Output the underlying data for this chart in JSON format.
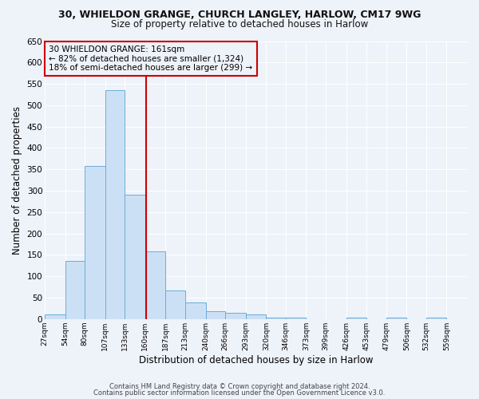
{
  "title_line1": "30, WHIELDON GRANGE, CHURCH LANGLEY, HARLOW, CM17 9WG",
  "title_line2": "Size of property relative to detached houses in Harlow",
  "xlabel": "Distribution of detached houses by size in Harlow",
  "ylabel": "Number of detached properties",
  "bar_left_edges": [
    27,
    54,
    80,
    107,
    133,
    160,
    187,
    213,
    240,
    266,
    293,
    320,
    346,
    373,
    399,
    426,
    453,
    479,
    506,
    532
  ],
  "bar_widths": [
    27,
    26,
    27,
    26,
    27,
    27,
    26,
    27,
    26,
    27,
    27,
    26,
    27,
    26,
    27,
    27,
    26,
    27,
    26,
    27
  ],
  "bar_heights": [
    10,
    135,
    358,
    535,
    290,
    158,
    67,
    38,
    18,
    15,
    10,
    3,
    3,
    0,
    0,
    3,
    0,
    3,
    0,
    3
  ],
  "bar_facecolor": "#cce0f5",
  "bar_edgecolor": "#6aaed6",
  "tick_labels": [
    "27sqm",
    "54sqm",
    "80sqm",
    "107sqm",
    "133sqm",
    "160sqm",
    "187sqm",
    "213sqm",
    "240sqm",
    "266sqm",
    "293sqm",
    "320sqm",
    "346sqm",
    "373sqm",
    "399sqm",
    "426sqm",
    "453sqm",
    "479sqm",
    "506sqm",
    "532sqm",
    "559sqm"
  ],
  "ylim": [
    0,
    650
  ],
  "yticks": [
    0,
    50,
    100,
    150,
    200,
    250,
    300,
    350,
    400,
    450,
    500,
    550,
    600,
    650
  ],
  "vline_x": 161,
  "vline_color": "#cc0000",
  "annotation_text": "30 WHIELDON GRANGE: 161sqm\n← 82% of detached houses are smaller (1,324)\n18% of semi-detached houses are larger (299) →",
  "annotation_box_edgecolor": "#cc0000",
  "background_color": "#eef2f9",
  "grid_color": "#ffffff",
  "footnote1": "Contains HM Land Registry data © Crown copyright and database right 2024.",
  "footnote2": "Contains public sector information licensed under the Open Government Licence v3.0."
}
